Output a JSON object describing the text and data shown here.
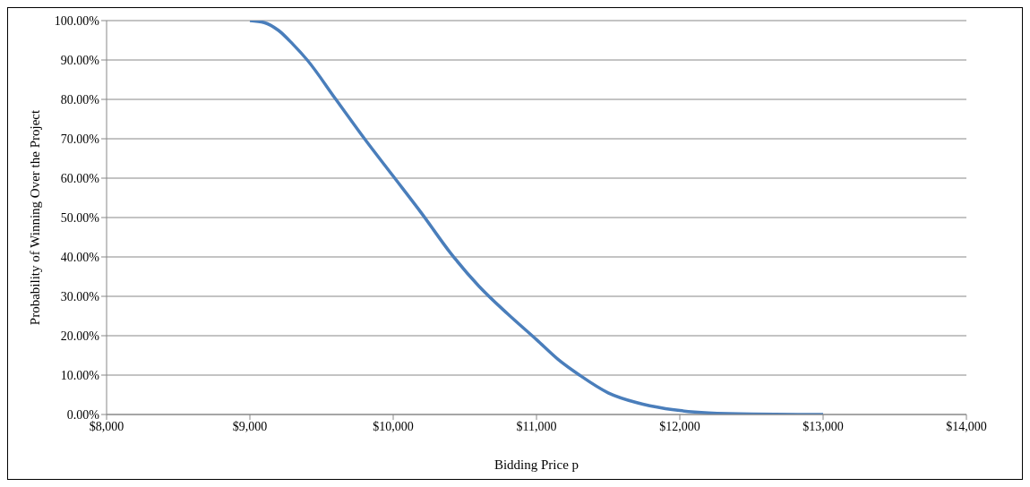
{
  "chart_data": {
    "type": "line",
    "xlabel": "Bidding Price p",
    "ylabel": "Probability of Winning Over the Project",
    "x": [
      9000,
      9100,
      9200,
      9300,
      9400,
      9600,
      9800,
      10000,
      10200,
      10400,
      10600,
      10800,
      11000,
      11150,
      11300,
      11500,
      11700,
      11900,
      12000,
      12200,
      12500,
      13000
    ],
    "series": [
      {
        "color": "#4a7ebb",
        "values": [
          100,
          99.5,
          97.5,
          94,
          90,
          80,
          70,
          60.5,
          51,
          41,
          32.5,
          25.5,
          19,
          14,
          10,
          5.5,
          3,
          1.5,
          1,
          0.4,
          0.1,
          0
        ]
      }
    ],
    "xlim": [
      8000,
      14000
    ],
    "xticks": [
      {
        "value": 8000,
        "label": "$8,000"
      },
      {
        "value": 9000,
        "label": "$9,000"
      },
      {
        "value": 10000,
        "label": "$10,000"
      },
      {
        "value": 11000,
        "label": "$11,000"
      },
      {
        "value": 12000,
        "label": "$12,000"
      },
      {
        "value": 13000,
        "label": "$13,000"
      },
      {
        "value": 14000,
        "label": "$14,000"
      }
    ],
    "ylim": [
      0,
      100
    ],
    "yticks": [
      {
        "value": 0,
        "label": "0.00%"
      },
      {
        "value": 10,
        "label": "10.00%"
      },
      {
        "value": 20,
        "label": "20.00%"
      },
      {
        "value": 30,
        "label": "30.00%"
      },
      {
        "value": 40,
        "label": "40.00%"
      },
      {
        "value": 50,
        "label": "50.00%"
      },
      {
        "value": 60,
        "label": "60.00%"
      },
      {
        "value": 70,
        "label": "70.00%"
      },
      {
        "value": 80,
        "label": "80.00%"
      },
      {
        "value": 90,
        "label": "90.00%"
      },
      {
        "value": 100,
        "label": "100.00%"
      }
    ],
    "grid": "y",
    "marker": "none",
    "line_style": "solid"
  }
}
